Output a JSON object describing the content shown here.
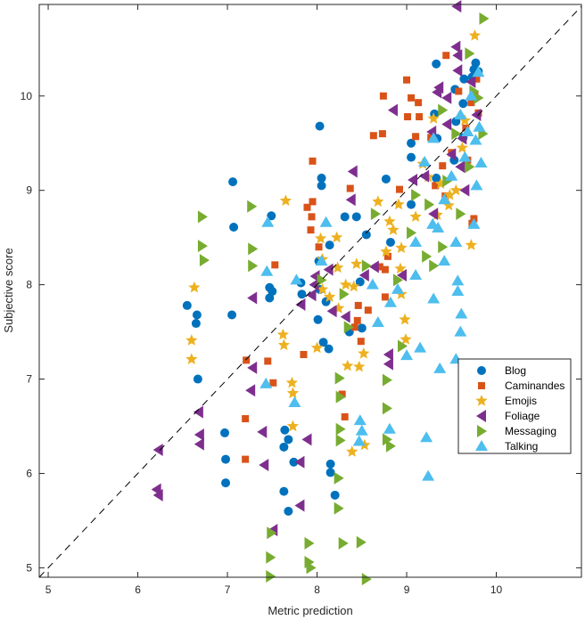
{
  "chart_data": {
    "type": "scatter",
    "title": "",
    "xlabel": "Metric prediction",
    "ylabel": "Subjective score",
    "xlim": [
      4.9,
      10.95
    ],
    "ylim": [
      4.9,
      10.97
    ],
    "xticks": [
      "5",
      "6",
      "7",
      "8",
      "9",
      "10"
    ],
    "yticks": [
      "5",
      "6",
      "7",
      "8",
      "9",
      "10"
    ],
    "grid": false,
    "legend_position": "lower-right",
    "reference_line": {
      "type": "identity",
      "style": "dashed",
      "color": "#000000"
    },
    "series": [
      {
        "name": "Blog",
        "marker": "circle",
        "color": "#0072BD",
        "points": [
          [
            8.03,
            9.68
          ],
          [
            7.06,
            9.09
          ],
          [
            7.49,
            8.73
          ],
          [
            7.07,
            8.61
          ],
          [
            8.05,
            9.13
          ],
          [
            8.05,
            9.05
          ],
          [
            9.33,
            10.34
          ],
          [
            9.31,
            9.81
          ],
          [
            9.34,
            9.55
          ],
          [
            9.05,
            9.5
          ],
          [
            9.05,
            9.35
          ],
          [
            8.77,
            9.12
          ],
          [
            9.05,
            8.85
          ],
          [
            8.55,
            8.53
          ],
          [
            8.44,
            8.72
          ],
          [
            8.82,
            8.45
          ],
          [
            8.14,
            8.42
          ],
          [
            8.31,
            8.72
          ],
          [
            6.55,
            7.78
          ],
          [
            6.65,
            7.59
          ],
          [
            6.66,
            7.68
          ],
          [
            7.05,
            7.68
          ],
          [
            6.67,
            7.0
          ],
          [
            7.47,
            7.97
          ],
          [
            7.5,
            7.93
          ],
          [
            7.47,
            7.86
          ],
          [
            7.82,
            8.02
          ],
          [
            7.83,
            7.9
          ],
          [
            8.03,
            7.95
          ],
          [
            8.1,
            7.82
          ],
          [
            8.01,
            7.63
          ],
          [
            8.07,
            7.39
          ],
          [
            8.13,
            7.32
          ],
          [
            8.36,
            7.5
          ],
          [
            8.5,
            7.54
          ],
          [
            6.97,
            6.43
          ],
          [
            6.98,
            6.15
          ],
          [
            6.98,
            5.9
          ],
          [
            7.64,
            6.46
          ],
          [
            7.68,
            6.36
          ],
          [
            7.63,
            6.28
          ],
          [
            7.74,
            6.12
          ],
          [
            7.63,
            5.81
          ],
          [
            7.68,
            5.6
          ],
          [
            8.15,
            6.1
          ],
          [
            8.15,
            6.01
          ],
          [
            8.2,
            5.77
          ],
          [
            8.48,
            8.03
          ],
          [
            9.75,
            10.28
          ],
          [
            9.77,
            10.35
          ],
          [
            9.73,
            10.2
          ],
          [
            9.8,
            10.26
          ],
          [
            9.64,
            10.18
          ],
          [
            9.54,
            10.07
          ],
          [
            9.63,
            9.92
          ],
          [
            9.55,
            9.73
          ],
          [
            9.63,
            9.56
          ],
          [
            9.53,
            9.32
          ],
          [
            9.33,
            9.13
          ],
          [
            8.02,
            8.25
          ]
        ]
      },
      {
        "name": "Caminandes",
        "marker": "square",
        "color": "#D95319",
        "points": [
          [
            7.95,
            9.31
          ],
          [
            8.37,
            9.02
          ],
          [
            7.95,
            8.88
          ],
          [
            7.89,
            8.82
          ],
          [
            7.94,
            8.72
          ],
          [
            7.93,
            8.58
          ],
          [
            8.02,
            8.4
          ],
          [
            7.53,
            8.21
          ],
          [
            8.74,
            10.0
          ],
          [
            9.0,
            10.17
          ],
          [
            9.01,
            9.78
          ],
          [
            8.73,
            9.6
          ],
          [
            8.63,
            9.58
          ],
          [
            9.13,
            9.93
          ],
          [
            9.05,
            9.98
          ],
          [
            9.14,
            9.78
          ],
          [
            9.1,
            9.57
          ],
          [
            9.27,
            9.56
          ],
          [
            9.44,
            10.43
          ],
          [
            9.76,
            10.01
          ],
          [
            9.72,
            9.93
          ],
          [
            9.78,
            10.18
          ],
          [
            9.8,
            9.82
          ],
          [
            9.73,
            8.65
          ],
          [
            9.75,
            8.7
          ],
          [
            9.68,
            9.32
          ],
          [
            9.4,
            9.26
          ],
          [
            9.43,
            8.94
          ],
          [
            8.79,
            8.3
          ],
          [
            8.76,
            7.87
          ],
          [
            8.7,
            8.19
          ],
          [
            8.76,
            8.16
          ],
          [
            8.57,
            7.73
          ],
          [
            8.46,
            7.78
          ],
          [
            8.45,
            7.62
          ],
          [
            8.42,
            7.55
          ],
          [
            8.49,
            7.4
          ],
          [
            7.85,
            7.26
          ],
          [
            7.45,
            7.19
          ],
          [
            7.21,
            7.2
          ],
          [
            7.51,
            6.96
          ],
          [
            7.2,
            6.58
          ],
          [
            7.2,
            6.15
          ],
          [
            8.31,
            6.6
          ],
          [
            8.28,
            6.84
          ],
          [
            9.58,
            10.05
          ],
          [
            9.66,
            9.66
          ],
          [
            9.5,
            9.4
          ],
          [
            9.32,
            9.05
          ],
          [
            8.92,
            9.01
          ]
        ]
      },
      {
        "name": "Emojis",
        "marker": "star",
        "color": "#EDB120",
        "points": [
          [
            6.63,
            7.97
          ],
          [
            6.6,
            7.41
          ],
          [
            6.6,
            7.21
          ],
          [
            7.65,
            8.89
          ],
          [
            7.72,
            6.96
          ],
          [
            7.73,
            6.85
          ],
          [
            7.73,
            6.5
          ],
          [
            7.62,
            7.47
          ],
          [
            7.63,
            7.36
          ],
          [
            8.04,
            8.49
          ],
          [
            8.06,
            8.27
          ],
          [
            8.06,
            7.95
          ],
          [
            8.23,
            8.18
          ],
          [
            8.22,
            8.5
          ],
          [
            8.41,
            7.98
          ],
          [
            8.44,
            8.22
          ],
          [
            8.14,
            7.87
          ],
          [
            8.34,
            7.14
          ],
          [
            8.47,
            7.13
          ],
          [
            8.39,
            6.23
          ],
          [
            8.53,
            6.3
          ],
          [
            8.24,
            7.75
          ],
          [
            8.0,
            7.33
          ],
          [
            8.52,
            7.27
          ],
          [
            8.91,
            8.85
          ],
          [
            8.81,
            8.67
          ],
          [
            8.94,
            8.39
          ],
          [
            8.77,
            8.35
          ],
          [
            8.93,
            8.17
          ],
          [
            8.94,
            7.9
          ],
          [
            8.98,
            7.63
          ],
          [
            8.99,
            7.42
          ],
          [
            9.24,
            9.14
          ],
          [
            9.34,
            8.74
          ],
          [
            9.47,
            8.84
          ],
          [
            9.65,
            9.74
          ],
          [
            9.76,
            10.64
          ],
          [
            9.72,
            8.42
          ],
          [
            9.38,
            9.07
          ],
          [
            9.55,
            9.0
          ],
          [
            9.3,
            9.76
          ],
          [
            9.62,
            9.45
          ],
          [
            8.68,
            8.88
          ],
          [
            9.1,
            8.72
          ],
          [
            9.18,
            9.28
          ],
          [
            8.85,
            8.58
          ],
          [
            8.32,
            8.0
          ],
          [
            9.48,
            8.95
          ]
        ]
      },
      {
        "name": "Foliage",
        "marker": "triangle-left",
        "color": "#7E2F8E",
        "points": [
          [
            9.56,
            10.95
          ],
          [
            6.23,
            6.25
          ],
          [
            6.21,
            5.83
          ],
          [
            6.23,
            5.77
          ],
          [
            6.68,
            6.65
          ],
          [
            6.69,
            6.41
          ],
          [
            6.69,
            6.31
          ],
          [
            7.26,
            6.88
          ],
          [
            7.28,
            7.12
          ],
          [
            7.39,
            6.44
          ],
          [
            7.41,
            6.09
          ],
          [
            7.89,
            6.36
          ],
          [
            7.81,
            5.66
          ],
          [
            7.51,
            5.4
          ],
          [
            7.28,
            7.86
          ],
          [
            7.82,
            7.79
          ],
          [
            7.94,
            7.89
          ],
          [
            7.97,
            8.0
          ],
          [
            7.98,
            8.09
          ],
          [
            8.13,
            8.16
          ],
          [
            8.17,
            7.72
          ],
          [
            8.4,
            9.2
          ],
          [
            8.38,
            8.9
          ],
          [
            8.32,
            7.66
          ],
          [
            8.85,
            9.85
          ],
          [
            9.07,
            9.11
          ],
          [
            8.8,
            7.26
          ],
          [
            8.8,
            7.16
          ],
          [
            8.53,
            8.1
          ],
          [
            9.36,
            10.09
          ],
          [
            9.34,
            10.04
          ],
          [
            9.28,
            9.62
          ],
          [
            9.55,
            10.52
          ],
          [
            9.57,
            10.43
          ],
          [
            9.57,
            10.27
          ],
          [
            8.64,
            8.19
          ],
          [
            7.81,
            6.12
          ],
          [
            9.45,
            9.98
          ],
          [
            9.62,
            9.55
          ],
          [
            9.5,
            9.38
          ],
          [
            9.72,
            10.15
          ],
          [
            9.2,
            9.15
          ],
          [
            9.65,
            9.0
          ],
          [
            9.3,
            8.75
          ],
          [
            8.95,
            8.1
          ],
          [
            9.45,
            9.7
          ],
          [
            9.78,
            9.8
          ],
          [
            9.6,
            9.25
          ]
        ]
      },
      {
        "name": "Messaging",
        "marker": "triangle-right",
        "color": "#77AC30",
        "points": [
          [
            9.86,
            10.82
          ],
          [
            6.72,
            8.72
          ],
          [
            6.72,
            8.41
          ],
          [
            6.74,
            8.26
          ],
          [
            7.27,
            8.83
          ],
          [
            7.28,
            8.38
          ],
          [
            7.28,
            8.2
          ],
          [
            8.25,
            7.01
          ],
          [
            8.78,
            6.99
          ],
          [
            8.26,
            6.81
          ],
          [
            8.78,
            6.69
          ],
          [
            8.26,
            6.47
          ],
          [
            8.26,
            6.35
          ],
          [
            8.78,
            6.36
          ],
          [
            8.82,
            6.29
          ],
          [
            8.24,
            5.95
          ],
          [
            8.24,
            5.63
          ],
          [
            7.49,
            5.37
          ],
          [
            7.91,
            5.26
          ],
          [
            8.29,
            5.26
          ],
          [
            8.49,
            5.27
          ],
          [
            7.48,
            5.11
          ],
          [
            7.91,
            5.06
          ],
          [
            7.93,
            5.0
          ],
          [
            7.48,
            4.91
          ],
          [
            8.55,
            4.88
          ],
          [
            8.05,
            8.05
          ],
          [
            8.3,
            7.9
          ],
          [
            8.55,
            8.2
          ],
          [
            8.9,
            8.05
          ],
          [
            8.95,
            7.35
          ],
          [
            8.35,
            7.55
          ],
          [
            9.3,
            8.2
          ],
          [
            9.4,
            8.4
          ],
          [
            9.25,
            8.85
          ],
          [
            9.45,
            9.1
          ],
          [
            9.6,
            8.75
          ],
          [
            9.8,
            9.98
          ],
          [
            9.7,
            10.45
          ],
          [
            9.75,
            10.05
          ],
          [
            9.4,
            9.85
          ],
          [
            9.55,
            9.6
          ],
          [
            9.85,
            9.6
          ],
          [
            9.22,
            8.3
          ],
          [
            9.05,
            8.55
          ],
          [
            9.7,
            9.25
          ],
          [
            9.1,
            8.95
          ],
          [
            8.65,
            8.75
          ]
        ]
      },
      {
        "name": "Talking",
        "marker": "triangle-up",
        "color": "#4DBEEE",
        "points": [
          [
            7.45,
            8.66
          ],
          [
            7.44,
            8.14
          ],
          [
            7.43,
            6.95
          ],
          [
            7.77,
            8.05
          ],
          [
            8.1,
            8.66
          ],
          [
            8.48,
            6.56
          ],
          [
            8.5,
            6.45
          ],
          [
            8.47,
            6.34
          ],
          [
            8.81,
            6.47
          ],
          [
            9.22,
            6.38
          ],
          [
            9.24,
            5.97
          ],
          [
            9.15,
            7.33
          ],
          [
            9.37,
            7.11
          ],
          [
            9.61,
            7.69
          ],
          [
            9.6,
            7.5
          ],
          [
            9.55,
            7.21
          ],
          [
            9.57,
            7.93
          ],
          [
            9.57,
            8.04
          ],
          [
            8.82,
            7.81
          ],
          [
            9.29,
            8.64
          ],
          [
            9.75,
            8.64
          ],
          [
            9.83,
            9.29
          ],
          [
            9.77,
            9.53
          ],
          [
            9.81,
            9.67
          ],
          [
            7.75,
            6.75
          ],
          [
            8.62,
            8.0
          ],
          [
            8.9,
            7.95
          ],
          [
            9.0,
            7.25
          ],
          [
            9.3,
            7.85
          ],
          [
            9.42,
            8.25
          ],
          [
            9.1,
            8.45
          ],
          [
            9.35,
            8.6
          ],
          [
            9.5,
            9.15
          ],
          [
            9.65,
            9.35
          ],
          [
            9.72,
            10.0
          ],
          [
            9.6,
            9.8
          ],
          [
            9.3,
            9.55
          ],
          [
            9.2,
            9.3
          ],
          [
            9.8,
            10.25
          ],
          [
            9.68,
            9.62
          ],
          [
            9.42,
            8.9
          ],
          [
            9.1,
            8.1
          ],
          [
            8.68,
            7.6
          ],
          [
            9.55,
            8.45
          ],
          [
            9.78,
            9.05
          ],
          [
            8.05,
            8.25
          ]
        ]
      }
    ]
  }
}
